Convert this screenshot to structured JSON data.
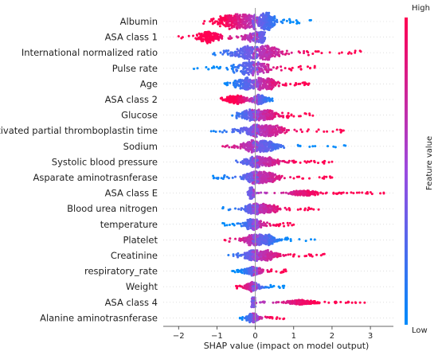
{
  "chart_data": {
    "type": "scatter",
    "subtype": "shap-beeswarm",
    "title": "",
    "xlabel": "SHAP value (impact on model output)",
    "xlim": [
      -2.4,
      3.6
    ],
    "xticks": [
      -2,
      -1,
      0,
      1,
      2,
      3
    ],
    "zero_line": true,
    "grid": false,
    "colorbar": {
      "label": "Feature value",
      "high_label": "High",
      "low_label": "Low",
      "high_color": "#ff0052",
      "low_color": "#008bfb",
      "placement": "right"
    },
    "features": [
      {
        "name": "Albumin",
        "range": [
          -1.35,
          1.45
        ],
        "density": [
          [
            -0.6,
            0.55
          ],
          [
            -0.2,
            0.65
          ],
          [
            0.3,
            0.3
          ]
        ],
        "low_side": "right",
        "max_half": 11
      },
      {
        "name": "ASA class 1",
        "range": [
          -2.0,
          0.25
        ],
        "density": [
          [
            0.05,
            0.4
          ],
          [
            -1.2,
            0.35
          ]
        ],
        "low_side": "right",
        "max_half": 8
      },
      {
        "name": "International normalized ratio",
        "range": [
          -1.1,
          2.75
        ],
        "density": [
          [
            -0.2,
            0.55
          ],
          [
            0.3,
            0.5
          ]
        ],
        "low_side": "left",
        "max_half": 9
      },
      {
        "name": "Pulse rate",
        "range": [
          -1.6,
          1.55
        ],
        "density": [
          [
            -0.1,
            0.55
          ]
        ],
        "low_side": "left",
        "max_half": 9
      },
      {
        "name": "Age",
        "range": [
          -0.8,
          1.4
        ],
        "density": [
          [
            -0.2,
            0.45
          ],
          [
            0.3,
            0.4
          ]
        ],
        "low_side": "left",
        "max_half": 8
      },
      {
        "name": "ASA class 2",
        "range": [
          -0.9,
          0.45
        ],
        "density": [
          [
            0.1,
            0.25
          ],
          [
            -0.5,
            0.3
          ]
        ],
        "low_side": "right",
        "max_half": 6
      },
      {
        "name": "Glucose",
        "range": [
          -0.6,
          1.5
        ],
        "density": [
          [
            -0.1,
            0.35
          ],
          [
            0.3,
            0.4
          ]
        ],
        "low_side": "left",
        "max_half": 7
      },
      {
        "name": "Activated partial thromboplastin time",
        "range": [
          -1.15,
          2.3
        ],
        "density": [
          [
            -0.05,
            0.4
          ],
          [
            0.4,
            0.45
          ]
        ],
        "low_side": "left",
        "max_half": 8
      },
      {
        "name": "Sodium",
        "range": [
          -0.85,
          2.35
        ],
        "density": [
          [
            -0.05,
            0.35
          ],
          [
            0.3,
            0.45
          ]
        ],
        "low_side": "right",
        "max_half": 8
      },
      {
        "name": "Systolic blood pressure",
        "range": [
          -0.5,
          2.0
        ],
        "density": [
          [
            -0.05,
            0.3
          ],
          [
            0.3,
            0.4
          ]
        ],
        "low_side": "left",
        "max_half": 7
      },
      {
        "name": "Asparate aminotrasnferase",
        "range": [
          -1.1,
          2.0
        ],
        "density": [
          [
            -0.05,
            0.3
          ],
          [
            0.3,
            0.4
          ]
        ],
        "low_side": "left",
        "max_half": 8
      },
      {
        "name": "ASA class E",
        "range": [
          -0.2,
          3.35
        ],
        "density": [
          [
            -0.1,
            0.08
          ],
          [
            1.3,
            0.55
          ]
        ],
        "low_side": "left",
        "max_half": 7
      },
      {
        "name": "Blood urea nitrogen",
        "range": [
          -0.85,
          1.65
        ],
        "density": [
          [
            -0.05,
            0.3
          ],
          [
            0.3,
            0.35
          ]
        ],
        "low_side": "left",
        "max_half": 7
      },
      {
        "name": "temperature",
        "range": [
          -0.85,
          1.0
        ],
        "density": [
          [
            -0.05,
            0.3
          ]
        ],
        "low_side": "left",
        "max_half": 7
      },
      {
        "name": "Platelet",
        "range": [
          -0.8,
          1.55
        ],
        "density": [
          [
            -0.05,
            0.3
          ],
          [
            0.3,
            0.35
          ]
        ],
        "low_side": "right",
        "max_half": 7
      },
      {
        "name": "Creatinine",
        "range": [
          -0.7,
          1.8
        ],
        "density": [
          [
            -0.05,
            0.3
          ],
          [
            0.3,
            0.35
          ]
        ],
        "low_side": "left",
        "max_half": 7
      },
      {
        "name": "respiratory_rate",
        "range": [
          -0.6,
          0.8
        ],
        "density": [
          [
            -0.05,
            0.25
          ]
        ],
        "low_side": "left",
        "max_half": 6
      },
      {
        "name": "Weight",
        "range": [
          -0.5,
          0.75
        ],
        "density": [
          [
            -0.05,
            0.2
          ]
        ],
        "low_side": "right",
        "max_half": 6
      },
      {
        "name": "ASA class 4",
        "range": [
          -0.1,
          2.85
        ],
        "density": [
          [
            -0.05,
            0.05
          ],
          [
            1.2,
            0.5
          ]
        ],
        "low_side": "left",
        "max_half": 6
      },
      {
        "name": "Alanine aminotrasnferase",
        "range": [
          -0.4,
          0.75
        ],
        "density": [
          [
            -0.05,
            0.2
          ]
        ],
        "low_side": "left",
        "max_half": 6
      }
    ]
  }
}
